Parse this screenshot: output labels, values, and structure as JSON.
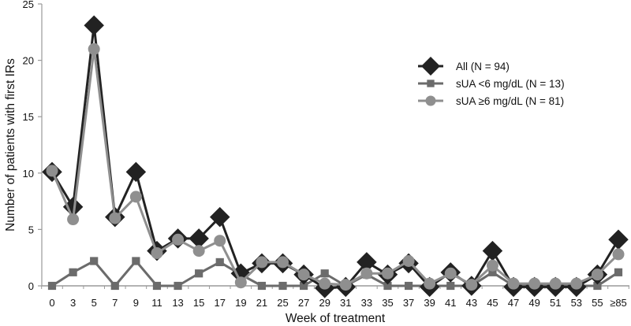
{
  "chart_data": {
    "type": "line",
    "title": "",
    "xlabel": "Week of treatment",
    "ylabel": "Number of patients with first IRs",
    "ylim": [
      0,
      25
    ],
    "yticks": [
      0,
      5,
      10,
      15,
      20,
      25
    ],
    "grid": false,
    "legend_position": "upper right",
    "categories": [
      "0",
      "3",
      "5",
      "7",
      "9",
      "11",
      "13",
      "15",
      "17",
      "19",
      "21",
      "25",
      "27",
      "29",
      "31",
      "33",
      "35",
      "37",
      "39",
      "41",
      "43",
      "45",
      "47",
      "49",
      "51",
      "53",
      "55",
      "≥85"
    ],
    "series": [
      {
        "name": "All (N = 94)",
        "marker": "diamond",
        "color": "#222222",
        "values": [
          10.1,
          7.0,
          23.1,
          6.1,
          10.1,
          3.1,
          4.2,
          4.2,
          6.1,
          1.1,
          2.0,
          2.0,
          1.0,
          -0.2,
          -0.1,
          2.1,
          1.0,
          2.0,
          -0.1,
          1.2,
          0.0,
          3.1,
          -0.1,
          -0.1,
          -0.1,
          -0.1,
          1.0,
          4.1
        ]
      },
      {
        "name": "sUA <6 mg/dL (N = 13)",
        "marker": "square",
        "color": "#6b6b6b",
        "values": [
          0,
          1.2,
          2.2,
          0,
          2.2,
          0,
          0,
          1.1,
          2.1,
          1.0,
          0,
          0,
          0,
          1.1,
          0,
          1.0,
          0,
          0,
          0,
          0,
          0,
          1.2,
          0,
          0,
          0,
          0,
          0,
          1.2
        ]
      },
      {
        "name": "sUA ≥6 mg/dL (N = 81)",
        "marker": "circle",
        "color": "#8f8f8f",
        "values": [
          10.2,
          5.9,
          21.0,
          6.0,
          7.9,
          2.9,
          4.1,
          3.1,
          4.0,
          0.3,
          2.1,
          2.1,
          1.0,
          0.2,
          0.1,
          1.1,
          1.1,
          2.2,
          0.2,
          1.1,
          0.1,
          1.8,
          0.2,
          0.2,
          0.2,
          0.2,
          1.0,
          2.8
        ]
      }
    ]
  }
}
